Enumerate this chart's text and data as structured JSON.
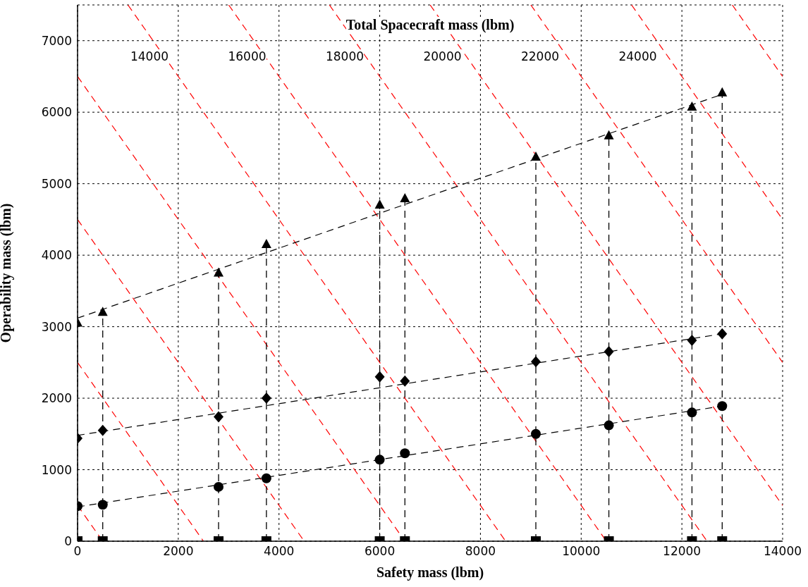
{
  "chart_data": {
    "type": "line",
    "title": "Total Spacecraft mass (lbm)",
    "xlabel": "Safety mass (lbm)",
    "ylabel": "Operability mass (lbm)",
    "xlim": [
      0,
      14000
    ],
    "xticks": [
      0,
      2000,
      4000,
      6000,
      8000,
      10000,
      12000,
      14000
    ],
    "ylim": [
      0,
      7500
    ],
    "yticks": [
      0,
      1000,
      2000,
      3000,
      4000,
      5000,
      6000,
      7000
    ],
    "grid": true,
    "annotations": [
      "14000",
      "16000",
      "18000",
      "20000",
      "22000",
      "24000"
    ],
    "series": [
      {
        "color": "#ff0000",
        "line_style": "dashed",
        "x": [
          0,
          500
        ],
        "values": [
          500,
          0
        ]
      },
      {
        "color": "#ff0000",
        "line_style": "dashed",
        "x": [
          0,
          2500
        ],
        "values": [
          2500,
          0
        ]
      },
      {
        "color": "#ff0000",
        "line_style": "dashed",
        "x": [
          0,
          4500
        ],
        "values": [
          4500,
          0
        ]
      },
      {
        "color": "#ff0000",
        "line_style": "dashed",
        "x": [
          0,
          6500
        ],
        "values": [
          6500,
          0
        ]
      },
      {
        "color": "#ff0000",
        "line_style": "dashed",
        "x": [
          1000,
          8500
        ],
        "values": [
          7500,
          0
        ]
      },
      {
        "color": "#ff0000",
        "line_style": "dashed",
        "x": [
          3000,
          10500
        ],
        "values": [
          7500,
          0
        ]
      },
      {
        "color": "#ff0000",
        "line_style": "dashed",
        "x": [
          5000,
          12500
        ],
        "values": [
          7500,
          0
        ]
      },
      {
        "color": "#ff0000",
        "line_style": "dashed",
        "x": [
          7000,
          14000
        ],
        "values": [
          7500,
          500
        ]
      },
      {
        "color": "#ff0000",
        "line_style": "dashed",
        "x": [
          9000,
          14000
        ],
        "values": [
          7500,
          2500
        ]
      },
      {
        "color": "#ff0000",
        "line_style": "dashed",
        "x": [
          11000,
          14000
        ],
        "values": [
          7500,
          4500
        ]
      },
      {
        "color": "#ff0000",
        "line_style": "dashed",
        "x": [
          13000,
          14000
        ],
        "values": [
          7500,
          6500
        ]
      },
      {
        "color": "#000000",
        "line_style": "dashed",
        "x": [
          0,
          12800
        ],
        "values": [
          3120,
          6250
        ]
      },
      {
        "color": "#000000",
        "line_style": "dashed",
        "x": [
          0,
          12800
        ],
        "values": [
          1480,
          2900
        ]
      },
      {
        "color": "#000000",
        "line_style": "dashed",
        "x": [
          0,
          12800
        ],
        "values": [
          480,
          1890
        ]
      },
      {
        "type": "lollipop",
        "color": "#000000",
        "marker": "triangle",
        "line_style": "dashed",
        "x": [
          0,
          500,
          2800,
          3750,
          6000,
          6500,
          9100,
          10550,
          12200,
          12800
        ],
        "values": [
          3050,
          3200,
          3750,
          4150,
          4700,
          4790,
          5370,
          5670,
          6070,
          6270
        ]
      },
      {
        "type": "scatter",
        "color": "#000000",
        "marker": "square",
        "x": [
          0,
          500,
          2800,
          3750,
          6000,
          6500,
          9100,
          10550,
          12200,
          12800
        ],
        "values": [
          0,
          0,
          0,
          0,
          0,
          0,
          0,
          0,
          0,
          0
        ]
      },
      {
        "type": "scatter",
        "color": "#000000",
        "marker": "circle",
        "x": [
          0,
          500,
          2800,
          3750,
          6000,
          6500,
          9100,
          10550,
          12200,
          12800
        ],
        "values": [
          490,
          510,
          760,
          880,
          1140,
          1230,
          1500,
          1620,
          1800,
          1890
        ]
      },
      {
        "type": "scatter",
        "color": "#000000",
        "marker": "diamond",
        "x": [
          0,
          500,
          2800,
          3750,
          6000,
          6500,
          9100,
          10550,
          12200,
          12800
        ],
        "values": [
          1440,
          1550,
          1740,
          2000,
          2300,
          2240,
          2510,
          2650,
          2810,
          2900
        ]
      }
    ]
  }
}
